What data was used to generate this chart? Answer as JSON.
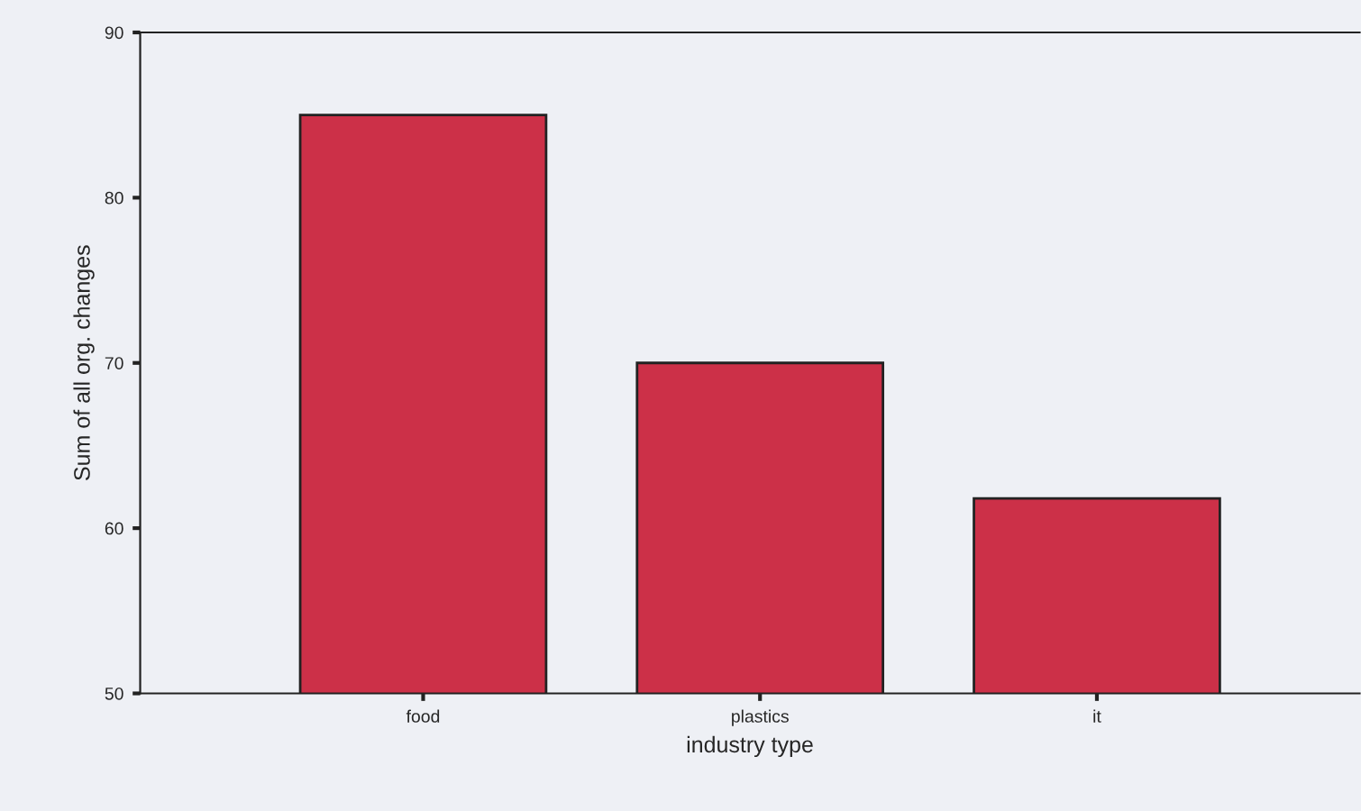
{
  "chart_data": {
    "type": "bar",
    "xlabel": "industry type",
    "ylabel": "Sum of all org. changes",
    "categories": [
      "food",
      "plastics",
      "it"
    ],
    "values": [
      85,
      70,
      61.8
    ],
    "color": "#cc3048",
    "ylim": [
      50,
      90
    ],
    "yticks": [
      50,
      60,
      70,
      80,
      90
    ],
    "grid": false,
    "legend": false
  }
}
